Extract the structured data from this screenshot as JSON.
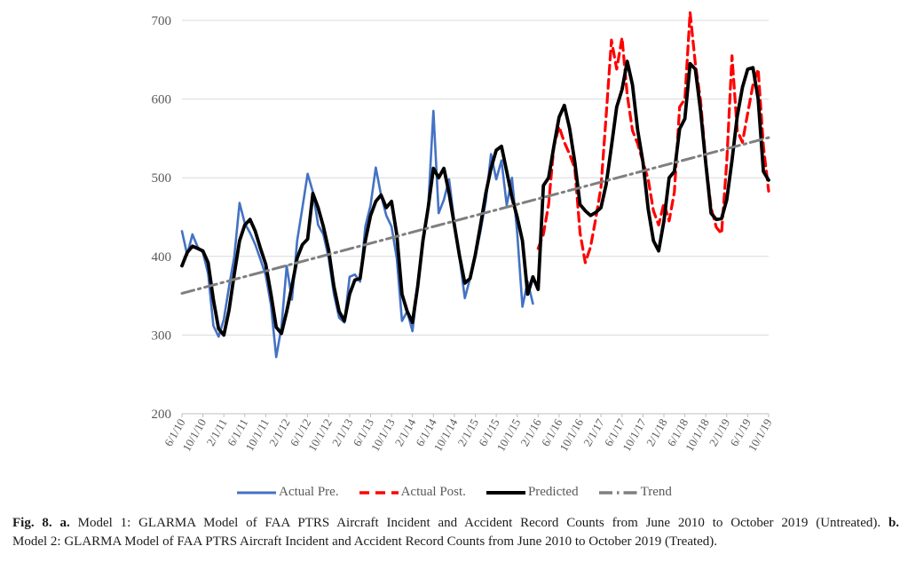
{
  "figure": {
    "caption": {
      "fig_label": "Fig. 8.",
      "part_a_label": "a.",
      "part_a_text": "Model 1: GLARMA Model of FAA PTRS Aircraft Incident and Accident Record Counts from June 2010 to October 2019 (Untreated).",
      "part_b_label": "b.",
      "part_b_text": "Model 2: GLARMA Model of FAA PTRS Aircraft Incident and Accident Record Counts from June 2010 to October 2019 (Treated)."
    }
  },
  "chart_data": {
    "type": "line",
    "title": "",
    "xlabel": "",
    "ylabel": "",
    "ylim": [
      200,
      700
    ],
    "y_ticks": [
      200,
      300,
      400,
      500,
      600,
      700
    ],
    "months_total": 113,
    "x_tick_every_months": 4,
    "x_tick_labels": [
      "6/1/10",
      "10/1/10",
      "2/1/11",
      "6/1/11",
      "10/1/11",
      "2/1/12",
      "6/1/12",
      "10/1/12",
      "2/1/13",
      "6/1/13",
      "10/1/13",
      "2/1/14",
      "6/1/14",
      "10/1/14",
      "2/1/15",
      "6/1/15",
      "10/1/15",
      "2/1/16",
      "6/1/16",
      "10/1/16",
      "2/1/17",
      "6/1/17",
      "10/1/17",
      "2/1/18",
      "6/1/18",
      "10/1/18",
      "2/1/19",
      "6/1/19",
      "10/1/19"
    ],
    "grid": "horizontal",
    "legend_position": "bottom",
    "grid_color": "#d9d9d9",
    "axis_color": "#bfbfbf",
    "tick_label_color": "#595959",
    "series": [
      {
        "name": "Actual Pre.",
        "slug": "actual-pre",
        "color": "#4472c4",
        "style": "solid",
        "width": 2.6,
        "start_index": 0,
        "values": [
          432,
          402,
          428,
          412,
          405,
          378,
          312,
          298,
          320,
          362,
          400,
          468,
          442,
          430,
          415,
          396,
          376,
          338,
          272,
          310,
          388,
          345,
          420,
          462,
          505,
          482,
          440,
          428,
          398,
          352,
          322,
          316,
          374,
          377,
          368,
          438,
          465,
          513,
          478,
          452,
          438,
          398,
          318,
          330,
          305,
          362,
          420,
          462,
          585,
          455,
          472,
          498,
          443,
          398,
          347,
          372,
          400,
          432,
          470,
          530,
          498,
          522,
          465,
          500,
          430,
          336,
          368,
          340
        ]
      },
      {
        "name": "Actual Post.",
        "slug": "actual-post",
        "color": "#ff0000",
        "style": "dashed",
        "width": 3.2,
        "start_index": 68,
        "values": [
          410,
          428,
          466,
          540,
          565,
          545,
          530,
          512,
          430,
          392,
          412,
          448,
          488,
          580,
          675,
          638,
          678,
          605,
          560,
          543,
          520,
          498,
          458,
          440,
          468,
          445,
          482,
          590,
          600,
          710,
          645,
          598,
          520,
          462,
          437,
          429,
          520,
          655,
          560,
          545,
          582,
          618,
          638,
          540,
          483
        ]
      },
      {
        "name": "Predicted",
        "slug": "predicted",
        "color": "#000000",
        "style": "solid",
        "width": 3.8,
        "start_index": 0,
        "values": [
          388,
          405,
          413,
          410,
          407,
          392,
          345,
          308,
          300,
          332,
          378,
          420,
          440,
          447,
          432,
          410,
          390,
          352,
          310,
          302,
          330,
          362,
          398,
          415,
          422,
          480,
          462,
          438,
          408,
          362,
          330,
          318,
          352,
          370,
          372,
          420,
          452,
          470,
          478,
          462,
          470,
          428,
          352,
          330,
          316,
          362,
          420,
          462,
          512,
          500,
          512,
          480,
          440,
          400,
          366,
          372,
          402,
          440,
          480,
          512,
          535,
          540,
          508,
          475,
          450,
          420,
          352,
          374,
          358,
          490,
          500,
          540,
          577,
          592,
          563,
          520,
          466,
          458,
          452,
          456,
          462,
          492,
          540,
          590,
          612,
          648,
          618,
          560,
          520,
          460,
          420,
          407,
          445,
          500,
          508,
          562,
          575,
          645,
          638,
          585,
          518,
          455,
          447,
          448,
          472,
          522,
          578,
          615,
          638,
          640,
          600,
          508,
          497
        ]
      },
      {
        "name": "Trend",
        "slug": "trend",
        "color": "#7f7f7f",
        "style": "dashdot",
        "width": 3,
        "endpoints": [
          353,
          551
        ]
      }
    ]
  }
}
